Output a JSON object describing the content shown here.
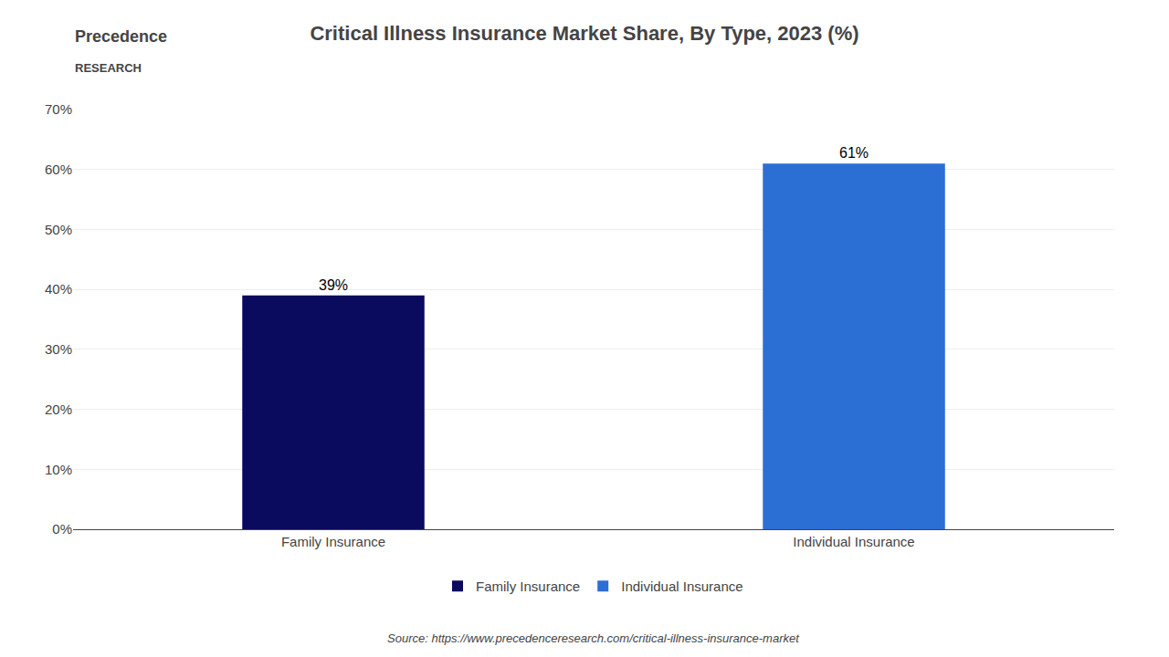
{
  "chart_data": {
    "type": "bar",
    "title": "Critical Illness Insurance Market Share, By Type, 2023 (%)",
    "categories": [
      "Family Insurance",
      "Individual Insurance"
    ],
    "values": [
      39,
      61
    ],
    "value_labels": [
      "39%",
      "61%"
    ],
    "colors": [
      "#0a0a5e",
      "#2b6fd4"
    ],
    "ylim": [
      0,
      70
    ],
    "yticks": [
      {
        "value": 0,
        "label": "0%"
      },
      {
        "value": 10,
        "label": "10%"
      },
      {
        "value": 20,
        "label": "20%"
      },
      {
        "value": 30,
        "label": "30%"
      },
      {
        "value": 40,
        "label": "40%"
      },
      {
        "value": 50,
        "label": "50%"
      },
      {
        "value": 60,
        "label": "60%"
      },
      {
        "value": 70,
        "label": "70%"
      }
    ],
    "grid": true,
    "data_labels": true,
    "legend": "bottom",
    "annotations": [
      "Precedence",
      "RESEARCH",
      "Source: https://www.precedenceresearch.com/critical-illness-insurance-market"
    ]
  }
}
